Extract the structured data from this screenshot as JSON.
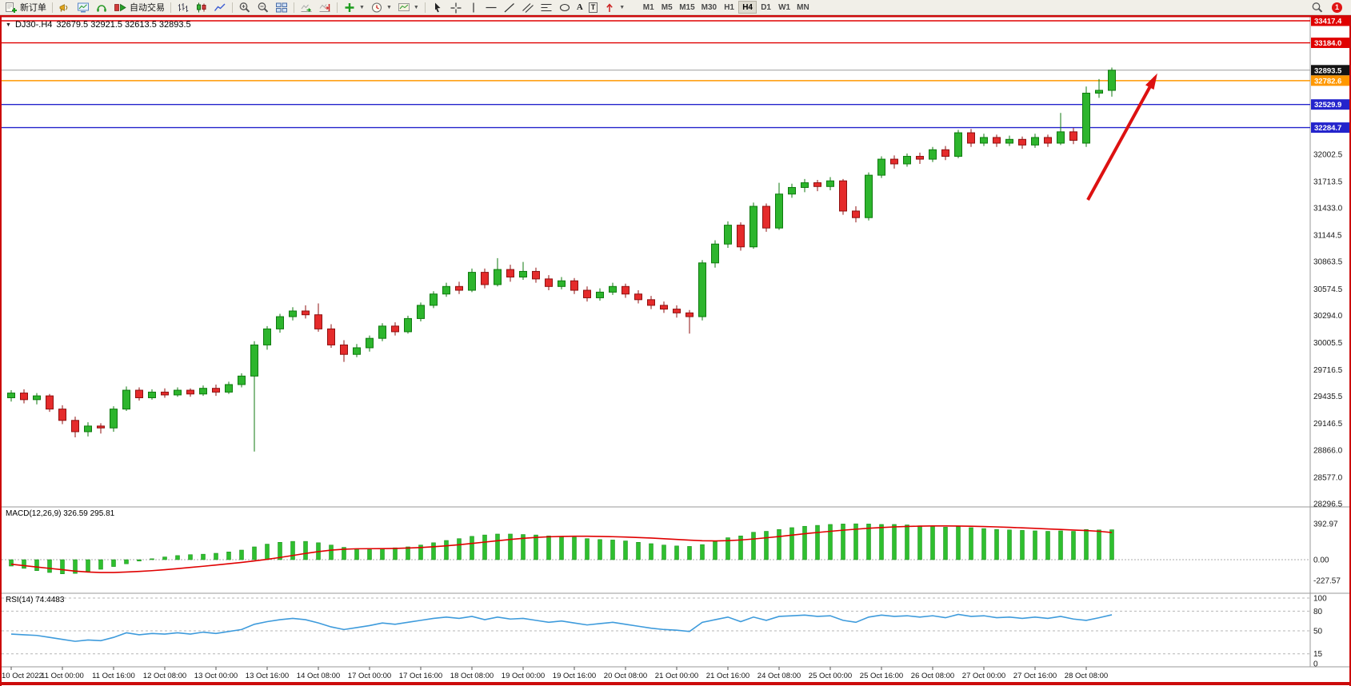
{
  "toolbar": {
    "new_order": "新订单",
    "auto_trading": "自动交易",
    "text_tool": "A",
    "label_tool": "T",
    "timeframes": [
      "M1",
      "M5",
      "M15",
      "M30",
      "H1",
      "H4",
      "D1",
      "W1",
      "MN"
    ],
    "active_timeframe": "H4",
    "notification_count": "1"
  },
  "chart_header": {
    "symbol_period": "DJ30-.H4",
    "ohlc_text": "32679.5 32921.5 32613.5 32893.5"
  },
  "chart_data": {
    "type": "candlestick",
    "symbol": "DJ30-",
    "timeframe": "H4",
    "price_axis": {
      "max": 33417.4,
      "min": 28296.5,
      "labels": [
        32002.5,
        31713.5,
        31433.0,
        31144.5,
        30863.5,
        30574.5,
        30294.0,
        30005.5,
        29716.5,
        29435.5,
        29146.5,
        28866.0,
        28577.0,
        28296.5
      ]
    },
    "price_lines": [
      {
        "value": 33417.4,
        "label": "33417.4",
        "color": "#e00000"
      },
      {
        "value": 33184.0,
        "label": "33184.0",
        "color": "#e00000"
      },
      {
        "value": 32782.6,
        "label": "32782.6",
        "color": "#ff9800"
      },
      {
        "value": 32529.9,
        "label": "32529.9",
        "color": "#2424cc"
      },
      {
        "value": 32284.7,
        "label": "32284.7",
        "color": "#2424cc"
      }
    ],
    "bid_line": {
      "value": 32893.5,
      "label": "32893.5",
      "box_color": "#141414",
      "line_color": "#9c9c9c"
    },
    "candle_colors": {
      "up": {
        "fill": "#2db52d",
        "stroke": "#0f7a0f"
      },
      "down": {
        "fill": "#e52b2b",
        "stroke": "#8f1010"
      }
    },
    "label_every": 4,
    "time_labels": [
      "10 Oct 2022",
      "11 Oct 00:00",
      "11 Oct 16:00",
      "12 Oct 08:00",
      "13 Oct 00:00",
      "13 Oct 16:00",
      "14 Oct 08:00",
      "17 Oct 00:00",
      "17 Oct 16:00",
      "18 Oct 08:00",
      "19 Oct 00:00",
      "19 Oct 16:00",
      "20 Oct 08:00",
      "21 Oct 00:00",
      "21 Oct 16:00",
      "24 Oct 08:00",
      "25 Oct 00:00",
      "25 Oct 16:00",
      "26 Oct 08:00",
      "27 Oct 00:00",
      "27 Oct 16:00",
      "28 Oct 08:00"
    ],
    "ohlc": [
      [
        29420,
        29500,
        29380,
        29470
      ],
      [
        29470,
        29510,
        29360,
        29400
      ],
      [
        29400,
        29470,
        29350,
        29440
      ],
      [
        29440,
        29460,
        29270,
        29300
      ],
      [
        29300,
        29340,
        29140,
        29180
      ],
      [
        29180,
        29220,
        29000,
        29060
      ],
      [
        29060,
        29160,
        29010,
        29120
      ],
      [
        29120,
        29150,
        29040,
        29100
      ],
      [
        29100,
        29330,
        29060,
        29300
      ],
      [
        29300,
        29540,
        29280,
        29500
      ],
      [
        29500,
        29530,
        29390,
        29420
      ],
      [
        29420,
        29510,
        29400,
        29480
      ],
      [
        29480,
        29520,
        29420,
        29450
      ],
      [
        29450,
        29530,
        29430,
        29500
      ],
      [
        29500,
        29520,
        29430,
        29460
      ],
      [
        29460,
        29550,
        29440,
        29520
      ],
      [
        29520,
        29560,
        29440,
        29480
      ],
      [
        29480,
        29590,
        29460,
        29560
      ],
      [
        29560,
        29680,
        29530,
        29650
      ],
      [
        29650,
        30020,
        28850,
        29980
      ],
      [
        29980,
        30180,
        29930,
        30150
      ],
      [
        30150,
        30310,
        30110,
        30280
      ],
      [
        30280,
        30380,
        30240,
        30340
      ],
      [
        30340,
        30400,
        30260,
        30300
      ],
      [
        30300,
        30420,
        30120,
        30150
      ],
      [
        30150,
        30200,
        29950,
        29980
      ],
      [
        29980,
        30030,
        29800,
        29880
      ],
      [
        29880,
        29990,
        29850,
        29950
      ],
      [
        29950,
        30080,
        29910,
        30050
      ],
      [
        30050,
        30210,
        30020,
        30180
      ],
      [
        30180,
        30220,
        30080,
        30120
      ],
      [
        30120,
        30290,
        30100,
        30260
      ],
      [
        30260,
        30430,
        30230,
        30400
      ],
      [
        30400,
        30550,
        30370,
        30520
      ],
      [
        30520,
        30640,
        30490,
        30600
      ],
      [
        30600,
        30650,
        30520,
        30560
      ],
      [
        30560,
        30790,
        30540,
        30750
      ],
      [
        30750,
        30790,
        30580,
        30620
      ],
      [
        30620,
        30900,
        30600,
        30780
      ],
      [
        30780,
        30830,
        30650,
        30700
      ],
      [
        30700,
        30860,
        30670,
        30760
      ],
      [
        30760,
        30800,
        30640,
        30680
      ],
      [
        30680,
        30720,
        30560,
        30600
      ],
      [
        30600,
        30700,
        30570,
        30660
      ],
      [
        30660,
        30690,
        30520,
        30560
      ],
      [
        30560,
        30600,
        30440,
        30480
      ],
      [
        30480,
        30580,
        30450,
        30540
      ],
      [
        30540,
        30640,
        30510,
        30600
      ],
      [
        30600,
        30630,
        30480,
        30520
      ],
      [
        30520,
        30560,
        30420,
        30460
      ],
      [
        30460,
        30500,
        30360,
        30400
      ],
      [
        30400,
        30440,
        30320,
        30360
      ],
      [
        30360,
        30400,
        30270,
        30320
      ],
      [
        30320,
        30350,
        30100,
        30280
      ],
      [
        30280,
        30880,
        30240,
        30850
      ],
      [
        30850,
        31090,
        30800,
        31050
      ],
      [
        31050,
        31290,
        31010,
        31250
      ],
      [
        31250,
        31280,
        30980,
        31020
      ],
      [
        31020,
        31490,
        31000,
        31450
      ],
      [
        31450,
        31480,
        31180,
        31220
      ],
      [
        31220,
        31700,
        31200,
        31580
      ],
      [
        31580,
        31690,
        31540,
        31650
      ],
      [
        31650,
        31740,
        31600,
        31700
      ],
      [
        31700,
        31730,
        31610,
        31660
      ],
      [
        31660,
        31760,
        31620,
        31720
      ],
      [
        31720,
        31740,
        31360,
        31400
      ],
      [
        31400,
        31450,
        31280,
        31330
      ],
      [
        31330,
        31810,
        31300,
        31780
      ],
      [
        31780,
        31980,
        31750,
        31950
      ],
      [
        31950,
        31990,
        31850,
        31900
      ],
      [
        31900,
        32010,
        31870,
        31980
      ],
      [
        31980,
        32020,
        31900,
        31950
      ],
      [
        31950,
        32080,
        31920,
        32050
      ],
      [
        32050,
        32090,
        31940,
        31980
      ],
      [
        31980,
        32260,
        31960,
        32230
      ],
      [
        32230,
        32270,
        32080,
        32120
      ],
      [
        32120,
        32220,
        32090,
        32180
      ],
      [
        32180,
        32210,
        32080,
        32120
      ],
      [
        32120,
        32200,
        32090,
        32160
      ],
      [
        32160,
        32190,
        32060,
        32100
      ],
      [
        32100,
        32220,
        32070,
        32180
      ],
      [
        32180,
        32210,
        32080,
        32120
      ],
      [
        32120,
        32440,
        32100,
        32240
      ],
      [
        32240,
        32280,
        32110,
        32150
      ],
      [
        32120,
        32720,
        32080,
        32650
      ],
      [
        32650,
        32800,
        32600,
        32680
      ],
      [
        32679.5,
        32921.5,
        32613.5,
        32893.5
      ]
    ],
    "indicators": {
      "macd": {
        "label": "MACD(12,26,9) 326.59 295.81",
        "value_main": 326.59,
        "value_signal": 295.81,
        "axis_labels": [
          "392.97",
          "0.00",
          "-227.57"
        ],
        "axis_values": [
          392.97,
          0,
          -227.57
        ],
        "hist_color": "#2fbf2f",
        "hist_stroke": "#128a12",
        "signal_color": "#e00000",
        "hist": [
          -70,
          -95,
          -120,
          -140,
          -155,
          -150,
          -130,
          -105,
          -75,
          -45,
          -15,
          10,
          30,
          45,
          55,
          60,
          70,
          85,
          105,
          140,
          170,
          190,
          200,
          200,
          185,
          160,
          135,
          120,
          110,
          120,
          130,
          140,
          160,
          185,
          210,
          230,
          255,
          270,
          280,
          280,
          275,
          270,
          260,
          255,
          245,
          230,
          220,
          215,
          205,
          190,
          175,
          160,
          150,
          145,
          165,
          200,
          240,
          260,
          300,
          310,
          330,
          350,
          365,
          375,
          385,
          390,
          392,
          390,
          385,
          385,
          380,
          370,
          365,
          355,
          360,
          350,
          340,
          330,
          325,
          320,
          315,
          310,
          315,
          310,
          330,
          325,
          327
        ],
        "signal": [
          -50,
          -65,
          -80,
          -95,
          -110,
          -125,
          -135,
          -140,
          -140,
          -135,
          -128,
          -120,
          -110,
          -98,
          -85,
          -72,
          -58,
          -44,
          -30,
          -14,
          4,
          24,
          46,
          68,
          88,
          104,
          114,
          119,
          120,
          121,
          123,
          127,
          133,
          141,
          151,
          163,
          177,
          192,
          207,
          221,
          233,
          243,
          250,
          254,
          256,
          256,
          254,
          251,
          247,
          242,
          236,
          229,
          221,
          213,
          207,
          205,
          208,
          215,
          226,
          239,
          253,
          268,
          283,
          297,
          310,
          322,
          333,
          343,
          351,
          358,
          363,
          366,
          368,
          368,
          367,
          365,
          362,
          358,
          353,
          348,
          342,
          336,
          330,
          324,
          318,
          310,
          296
        ]
      },
      "rsi": {
        "label": "RSI(14) 74.4483",
        "value": 74.4483,
        "levels": [
          100,
          80,
          50,
          15
        ],
        "axis_labels": [
          "100",
          "80",
          "50",
          "15",
          "0"
        ],
        "axis_values": [
          100,
          80,
          50,
          15,
          0
        ],
        "line_color": "#3e9bdc",
        "values": [
          45,
          44,
          43,
          40,
          37,
          34,
          36,
          35,
          40,
          47,
          44,
          46,
          45,
          47,
          45,
          48,
          46,
          49,
          52,
          60,
          64,
          67,
          69,
          67,
          62,
          56,
          52,
          55,
          58,
          62,
          60,
          63,
          66,
          69,
          71,
          69,
          72,
          67,
          71,
          68,
          69,
          66,
          63,
          65,
          62,
          59,
          61,
          63,
          60,
          57,
          54,
          52,
          51,
          49,
          63,
          67,
          71,
          64,
          71,
          66,
          72,
          73,
          74,
          72,
          73,
          66,
          63,
          71,
          74,
          72,
          73,
          71,
          73,
          70,
          75,
          72,
          73,
          70,
          71,
          69,
          71,
          69,
          72,
          68,
          66,
          70,
          74.45
        ]
      }
    },
    "annotations": [
      {
        "type": "arrow",
        "direction": "up-right",
        "color": "#dd1111"
      }
    ],
    "window_border_color": "#cc0a0a"
  }
}
